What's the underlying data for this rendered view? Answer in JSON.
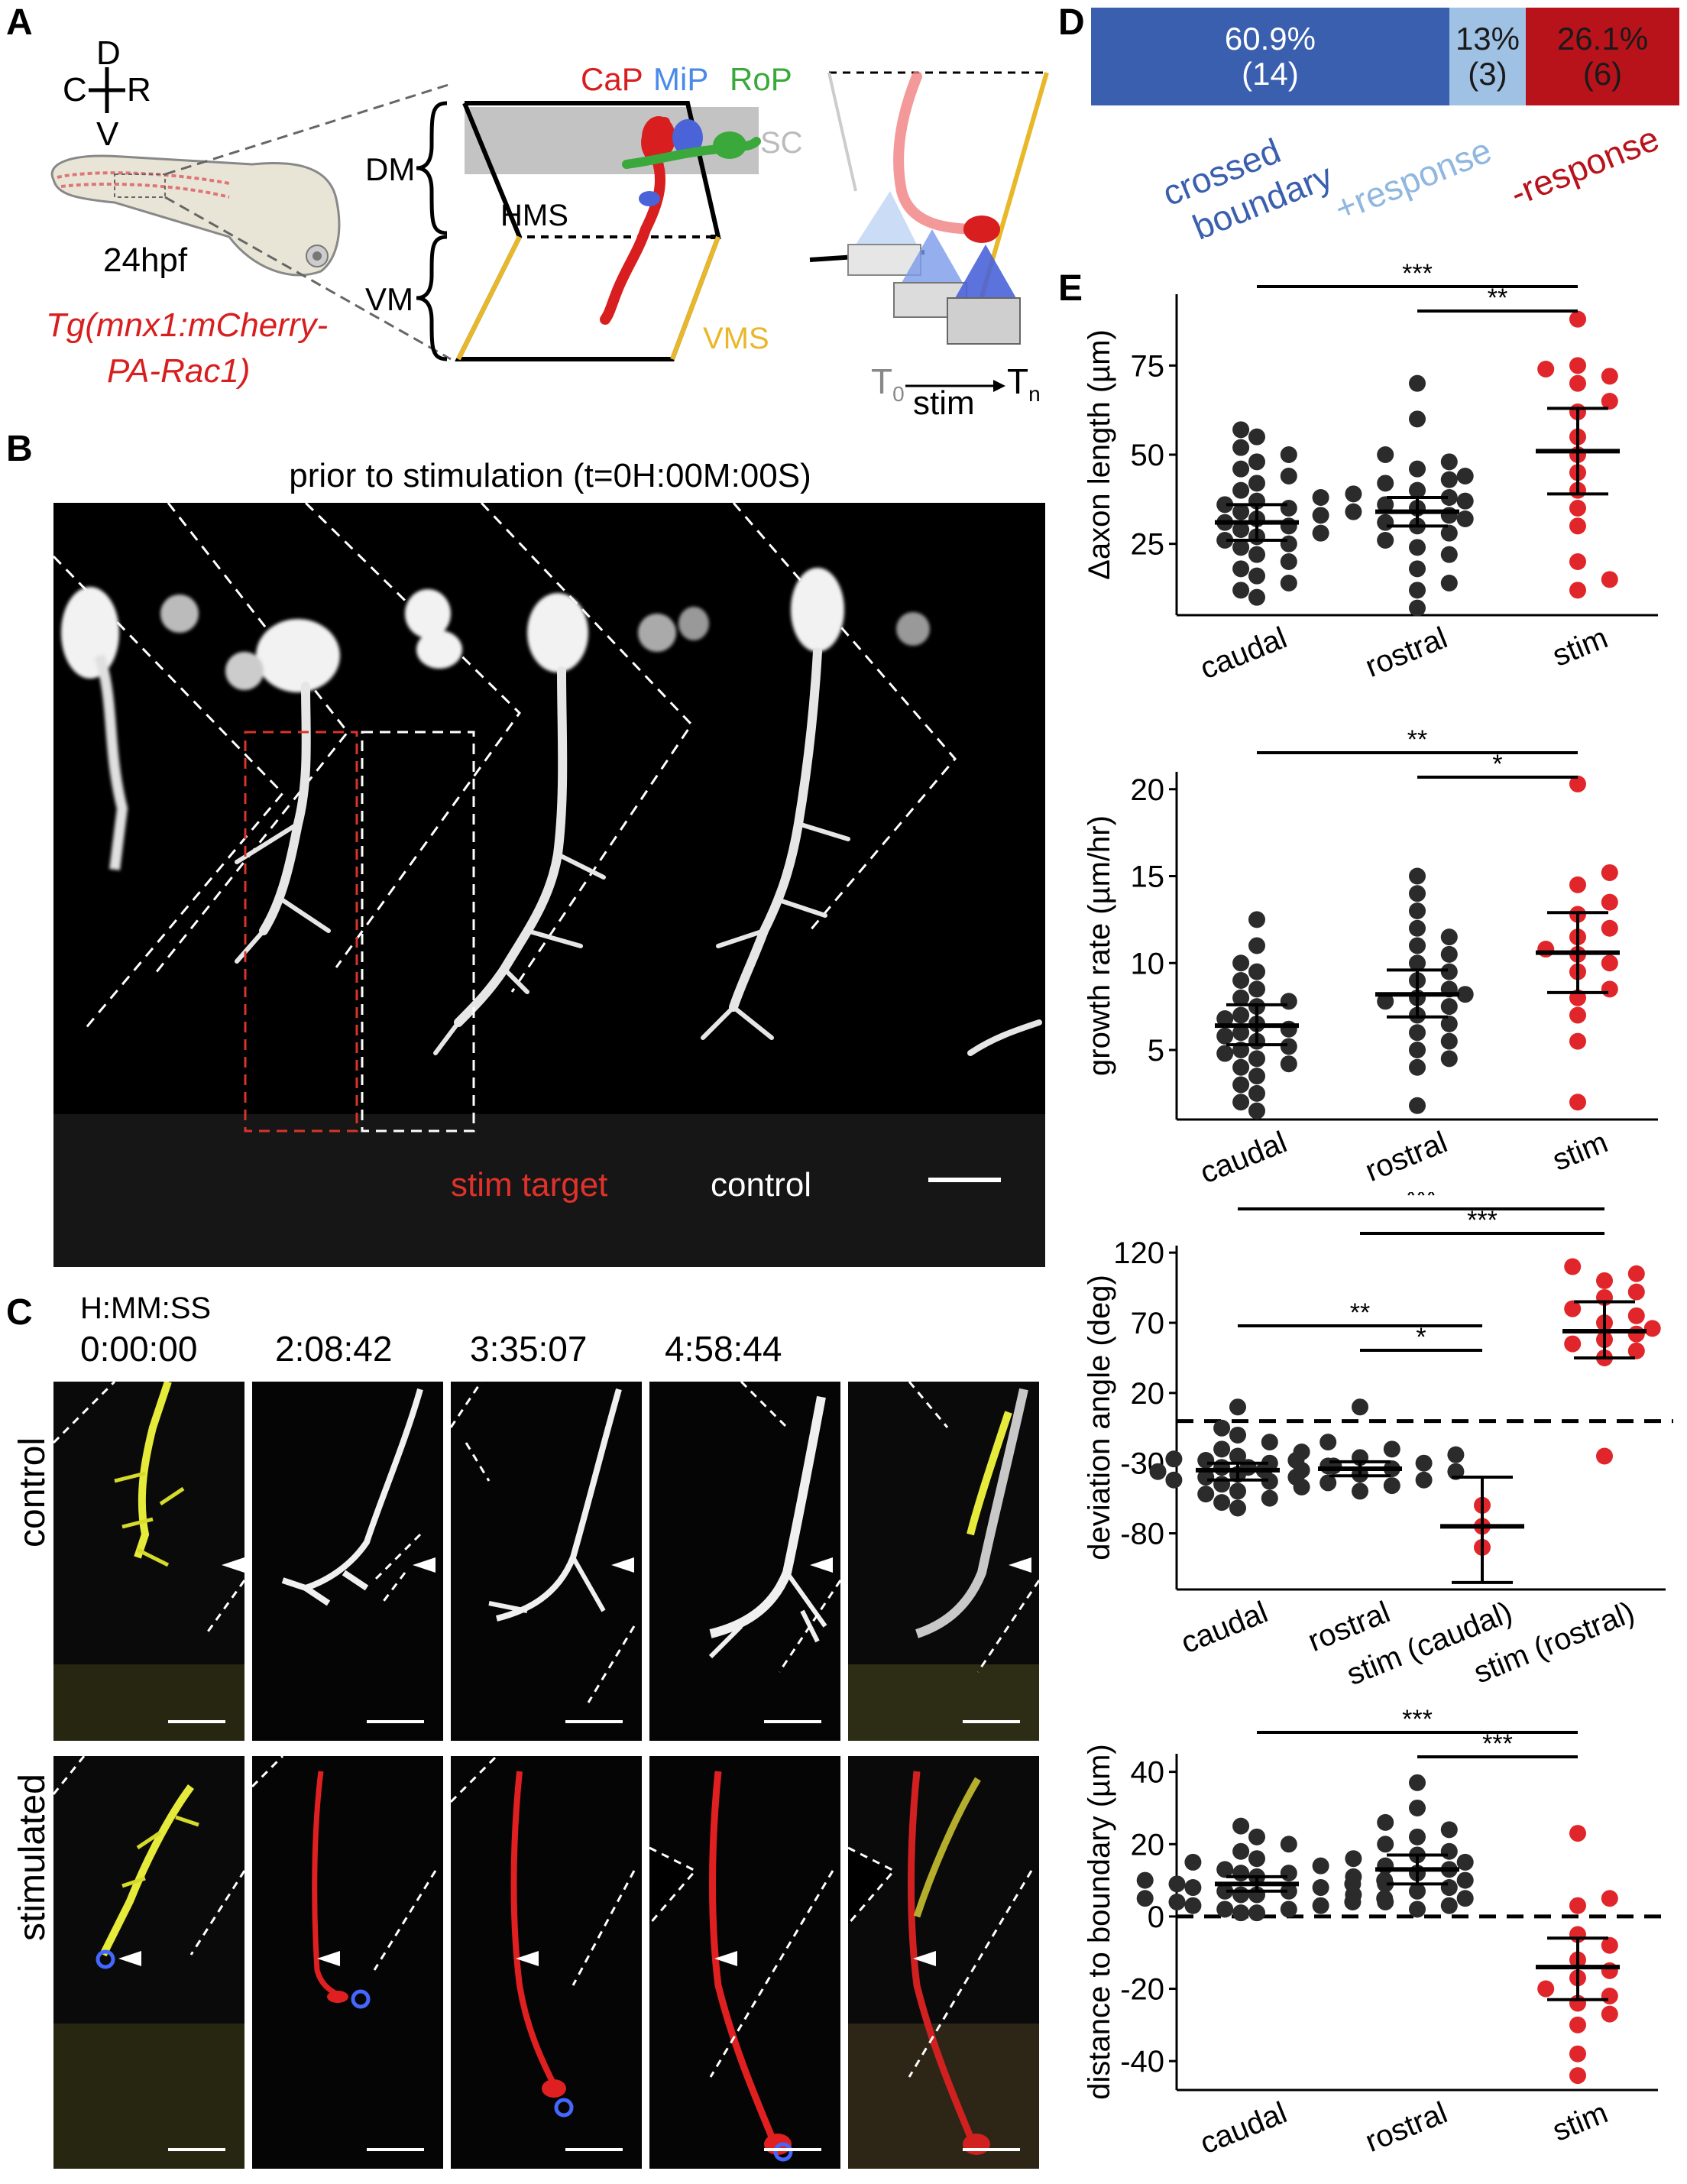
{
  "panels": {
    "A": {
      "label": "A",
      "compass": {
        "d": "D",
        "c": "C",
        "r": "R",
        "v": "V"
      },
      "stage": "24hpf",
      "transgene_line1": "Tg(mnx1:mCherry-",
      "transgene_line2": "PA-Rac1)",
      "neurons": {
        "cap": "CaP",
        "mip": "MiP",
        "rop": "RoP"
      },
      "sc": "SC",
      "dm": "DM",
      "vm": "VM",
      "hms": "HMS",
      "vms": "VMS",
      "t0": "T",
      "t0_sub": "0",
      "tn": "T",
      "tn_sub": "n",
      "stim": "stim"
    },
    "B": {
      "label": "B",
      "title": "prior to stimulation (t=0H:00M:00S)",
      "stim_target": "stim target",
      "control": "control"
    },
    "C": {
      "label": "C",
      "time_header": "H:MM:SS",
      "times": [
        "0:00:00",
        "2:08:42",
        "3:35:07",
        "4:58:44"
      ],
      "rows": [
        "control",
        "stimulated"
      ]
    },
    "D": {
      "label": "D",
      "segments": [
        {
          "pct": "60.9%",
          "n": "(14)",
          "label_line1": "crossed",
          "label_line2": "boundary",
          "value": 60.9,
          "color": "#3a5fae",
          "label_color": "#3a5fae"
        },
        {
          "pct": "13%",
          "n": "(3)",
          "label_line1": "+response",
          "label_line2": "",
          "value": 13.0,
          "color": "#9fc1e4",
          "label_color": "#8fb7e0"
        },
        {
          "pct": "26.1%",
          "n": "(6)",
          "label_line1": "-response",
          "label_line2": "",
          "value": 26.1,
          "color": "#b8121b",
          "label_color": "#b8121b"
        }
      ]
    },
    "E": {
      "label": "E"
    }
  },
  "chart_data": [
    {
      "type": "bar",
      "stacked_percent": true,
      "categories": [
        "crossed boundary",
        "+response",
        "-response"
      ],
      "values": [
        60.9,
        13,
        26.1
      ],
      "counts": [
        14,
        3,
        6
      ]
    },
    {
      "type": "scatter",
      "ylabel": "Δaxon length (µm)",
      "categories": [
        "caudal",
        "rostral",
        "stim"
      ],
      "yticks": [
        25,
        50,
        75
      ],
      "ylim": [
        5,
        95
      ],
      "means": [
        31,
        34,
        51
      ],
      "ci": [
        [
          26,
          36
        ],
        [
          30,
          38
        ],
        [
          39,
          63
        ]
      ],
      "significance": [
        {
          "from": "caudal",
          "to": "stim",
          "stars": "***"
        },
        {
          "from": "rostral",
          "to": "stim",
          "stars": "**"
        }
      ],
      "points": [
        [
          57,
          55,
          52,
          50,
          48,
          46,
          44,
          42,
          40,
          38,
          37,
          36,
          35,
          34,
          33,
          32,
          31,
          30,
          29,
          28,
          27,
          26,
          25,
          24,
          22,
          20,
          18,
          16,
          14,
          12,
          10
        ],
        [
          70,
          60,
          50,
          48,
          46,
          44,
          43,
          42,
          40,
          39,
          38,
          37,
          36,
          35,
          34,
          33,
          32,
          31,
          30,
          28,
          26,
          24,
          22,
          18,
          14,
          12,
          7
        ],
        [
          88,
          75,
          74,
          72,
          70,
          65,
          62,
          55,
          50,
          45,
          40,
          35,
          30,
          20,
          15,
          12
        ]
      ]
    },
    {
      "type": "scatter",
      "ylabel": "growth rate (µm/hr)",
      "categories": [
        "caudal",
        "rostral",
        "stim"
      ],
      "yticks": [
        5,
        10,
        15,
        20
      ],
      "ylim": [
        1,
        21
      ],
      "means": [
        6.4,
        8.2,
        10.6
      ],
      "ci": [
        [
          5.3,
          7.6
        ],
        [
          6.9,
          9.6
        ],
        [
          8.3,
          12.9
        ]
      ],
      "significance": [
        {
          "from": "caudal",
          "to": "stim",
          "stars": "**"
        },
        {
          "from": "rostral",
          "to": "stim",
          "stars": "*"
        }
      ],
      "points": [
        [
          12.5,
          11,
          10,
          9.5,
          9,
          8.5,
          8,
          7.8,
          7.5,
          7,
          6.8,
          6.5,
          6.2,
          6,
          5.8,
          5.5,
          5.2,
          5,
          4.8,
          4.5,
          4.2,
          4,
          3.5,
          3,
          2.5,
          2,
          1.5
        ],
        [
          15,
          14,
          13,
          12,
          11.5,
          11,
          10.5,
          10,
          9.5,
          9,
          8.5,
          8.2,
          8,
          7.8,
          7.5,
          7,
          6.5,
          6,
          5.5,
          5,
          4.5,
          4,
          1.8
        ],
        [
          20.3,
          15.2,
          14.5,
          13.5,
          12.8,
          12,
          11.5,
          10.8,
          10.5,
          10,
          9.5,
          8.5,
          8,
          7,
          5.5,
          2
        ]
      ]
    },
    {
      "type": "scatter",
      "ylabel": "deviation angle (deg)",
      "categories": [
        "caudal",
        "rostral",
        "stim (caudal)",
        "stim (rostral)"
      ],
      "yticks": [
        -80,
        -30,
        20,
        70,
        120
      ],
      "ylim": [
        -120,
        125
      ],
      "reference_line": 0,
      "means": [
        -35,
        -34,
        -75,
        64
      ],
      "ci": [
        [
          -42,
          -30
        ],
        [
          -39,
          -29
        ],
        [
          -115,
          -40
        ],
        [
          45,
          85
        ]
      ],
      "significance": [
        {
          "from": "caudal",
          "to": "stim (rostral)",
          "stars": "***"
        },
        {
          "from": "rostral",
          "to": "stim (rostral)",
          "stars": "***"
        },
        {
          "from": "caudal",
          "to": "stim (caudal)",
          "stars": "**"
        },
        {
          "from": "rostral",
          "to": "stim (caudal)",
          "stars": "*"
        }
      ],
      "points": [
        [
          10,
          -5,
          -10,
          -15,
          -20,
          -22,
          -25,
          -27,
          -28,
          -30,
          -32,
          -33,
          -35,
          -36,
          -38,
          -40,
          -42,
          -43,
          -45,
          -47,
          -50,
          -52,
          -55,
          -58,
          -62
        ],
        [
          10,
          -15,
          -20,
          -24,
          -26,
          -28,
          -30,
          -32,
          -33,
          -34,
          -35,
          -36,
          -38,
          -40,
          -42,
          -44,
          -46,
          -50
        ],
        [
          -60,
          -75,
          -90
        ],
        [
          110,
          105,
          100,
          92,
          88,
          80,
          75,
          70,
          66,
          62,
          58,
          55,
          50,
          45,
          -25
        ]
      ]
    },
    {
      "type": "scatter",
      "ylabel": "distance to boundary (µm)",
      "categories": [
        "caudal",
        "rostral",
        "stim"
      ],
      "yticks": [
        -40,
        -20,
        0,
        20,
        40
      ],
      "ylim": [
        -48,
        45
      ],
      "reference_line": 0,
      "means": [
        9,
        13,
        -14
      ],
      "ci": [
        [
          7,
          11
        ],
        [
          9,
          17
        ],
        [
          -23,
          -6
        ]
      ],
      "significance": [
        {
          "from": "caudal",
          "to": "stim",
          "stars": "***"
        },
        {
          "from": "rostral",
          "to": "stim",
          "stars": "***"
        }
      ],
      "points": [
        [
          25,
          22,
          20,
          18,
          16,
          15,
          14,
          13,
          12,
          12,
          11,
          10,
          10,
          9,
          9,
          8,
          8,
          7,
          7,
          6,
          6,
          5,
          5,
          4,
          4,
          3,
          3,
          2,
          2,
          1,
          1
        ],
        [
          37,
          30,
          26,
          24,
          22,
          20,
          18,
          17,
          16,
          15,
          14,
          13,
          12,
          11,
          10,
          9,
          8,
          7,
          6,
          5,
          4,
          3,
          2
        ],
        [
          23,
          5,
          3,
          -5,
          -8,
          -12,
          -15,
          -17,
          -20,
          -22,
          -24,
          -27,
          -30,
          -38,
          -44
        ]
      ]
    }
  ]
}
